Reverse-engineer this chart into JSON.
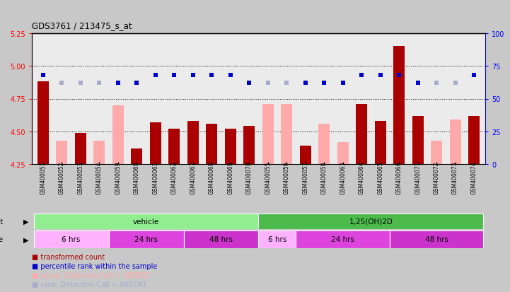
{
  "title": "GDS3761 / 213475_s_at",
  "samples": [
    "GSM400051",
    "GSM400052",
    "GSM400053",
    "GSM400054",
    "GSM400059",
    "GSM400060",
    "GSM400061",
    "GSM400062",
    "GSM400067",
    "GSM400068",
    "GSM400069",
    "GSM400070",
    "GSM400055",
    "GSM400056",
    "GSM400057",
    "GSM400058",
    "GSM400063",
    "GSM400064",
    "GSM400065",
    "GSM400066",
    "GSM400071",
    "GSM400072",
    "GSM400073",
    "GSM400074"
  ],
  "bar_values": [
    4.88,
    null,
    4.49,
    null,
    null,
    4.37,
    4.57,
    4.52,
    4.58,
    4.56,
    4.52,
    4.54,
    null,
    null,
    4.39,
    null,
    null,
    4.71,
    4.58,
    5.15,
    4.62,
    null,
    null,
    4.62
  ],
  "absent_values": [
    null,
    4.43,
    null,
    4.43,
    4.7,
    null,
    null,
    null,
    null,
    null,
    null,
    null,
    4.71,
    4.71,
    null,
    4.56,
    4.42,
    null,
    null,
    null,
    null,
    4.43,
    4.59,
    null
  ],
  "rank_values": [
    68,
    62,
    62,
    62,
    62,
    62,
    68,
    68,
    68,
    68,
    68,
    62,
    62,
    62,
    62,
    62,
    62,
    68,
    68,
    68,
    62,
    62,
    62,
    68
  ],
  "rank_absent": [
    false,
    true,
    true,
    true,
    false,
    false,
    false,
    false,
    false,
    false,
    false,
    false,
    true,
    true,
    false,
    false,
    false,
    false,
    false,
    false,
    false,
    true,
    true,
    false
  ],
  "ylim_left": [
    4.25,
    5.25
  ],
  "ylim_right": [
    0,
    100
  ],
  "yticks_left": [
    4.25,
    4.5,
    4.75,
    5.0,
    5.25
  ],
  "yticks_right": [
    0,
    25,
    50,
    75,
    100
  ],
  "grid_values": [
    4.5,
    4.75,
    5.0
  ],
  "agent_groups": [
    {
      "label": "vehicle",
      "start": 0,
      "end": 12,
      "color": "#90EE90"
    },
    {
      "label": "1,25(OH)2D",
      "start": 12,
      "end": 24,
      "color": "#4CBB4C"
    }
  ],
  "time_groups": [
    {
      "label": "6 hrs",
      "start": 0,
      "end": 4,
      "color": "#FFB3FF"
    },
    {
      "label": "24 hrs",
      "start": 4,
      "end": 8,
      "color": "#DD44DD"
    },
    {
      "label": "48 hrs",
      "start": 8,
      "end": 12,
      "color": "#CC33CC"
    },
    {
      "label": "6 hrs",
      "start": 12,
      "end": 14,
      "color": "#FFB3FF"
    },
    {
      "label": "24 hrs",
      "start": 14,
      "end": 19,
      "color": "#DD44DD"
    },
    {
      "label": "48 hrs",
      "start": 19,
      "end": 24,
      "color": "#CC33CC"
    }
  ],
  "bar_color": "#AA0000",
  "absent_bar_color": "#FFAAAA",
  "rank_color": "#0000CC",
  "rank_absent_color": "#AAAACC",
  "bg_color": "#C8C8C8",
  "plot_bg": "#EBEBEB"
}
